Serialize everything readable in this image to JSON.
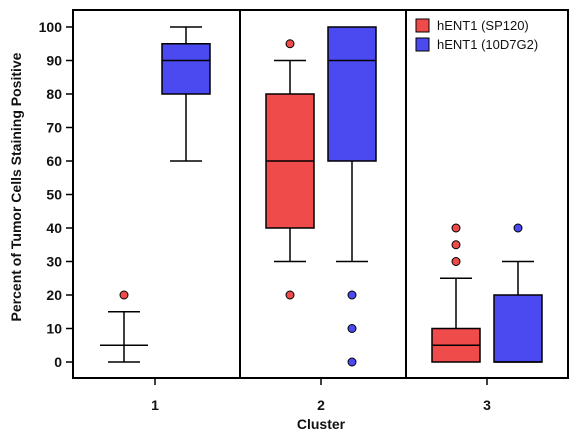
{
  "chart_data": {
    "type": "box",
    "xlabel": "Cluster",
    "ylabel": "Percent of Tumor Cells Staining Positive",
    "categories": [
      "1",
      "2",
      "3"
    ],
    "ylim": [
      0,
      100
    ],
    "yticks": [
      0,
      10,
      20,
      30,
      40,
      50,
      60,
      70,
      80,
      90,
      100
    ],
    "grid": false,
    "legend_position": "top-right",
    "series": [
      {
        "name": "hENT1 (SP120)",
        "color": "#f04b4b",
        "boxes": [
          {
            "category": "1",
            "min": 0,
            "q1": 5,
            "median": 5,
            "q3": 5,
            "max": 15,
            "outliers": [
              20
            ]
          },
          {
            "category": "2",
            "min": 30,
            "q1": 40,
            "median": 60,
            "q3": 80,
            "max": 90,
            "outliers": [
              95,
              20
            ]
          },
          {
            "category": "3",
            "min": 0,
            "q1": 0,
            "median": 5,
            "q3": 10,
            "max": 25,
            "outliers": [
              30,
              35,
              40
            ]
          }
        ]
      },
      {
        "name": "hENT1 (10D7G2)",
        "color": "#4a4af0",
        "boxes": [
          {
            "category": "1",
            "min": 60,
            "q1": 80,
            "median": 90,
            "q3": 95,
            "max": 100,
            "outliers": []
          },
          {
            "category": "2",
            "min": 30,
            "q1": 60,
            "median": 90,
            "q3": 100,
            "max": 100,
            "outliers": [
              20,
              10,
              0
            ]
          },
          {
            "category": "3",
            "min": 0,
            "q1": 0,
            "median": 0,
            "q3": 20,
            "max": 30,
            "outliers": [
              40
            ]
          }
        ]
      }
    ]
  }
}
